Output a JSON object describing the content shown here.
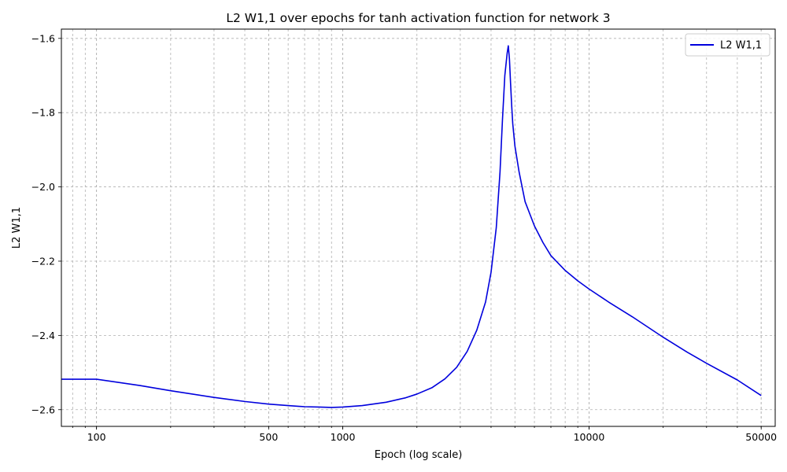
{
  "chart_data": {
    "type": "line",
    "title": "L2 W1,1 over epochs for tanh activation function for network 3",
    "xlabel": "Epoch (log scale)",
    "ylabel": "L2 W1,1",
    "xscale": "log",
    "xlim": [
      72,
      57000
    ],
    "ylim": [
      -2.645,
      -1.575
    ],
    "x_ticks": [
      {
        "value": 100,
        "label": "100"
      },
      {
        "value": 500,
        "label": "500"
      },
      {
        "value": 1000,
        "label": "1000"
      },
      {
        "value": 10000,
        "label": "10000"
      },
      {
        "value": 50000,
        "label": "50000"
      }
    ],
    "y_ticks": [
      {
        "value": -1.6,
        "label": "−1.6"
      },
      {
        "value": -1.8,
        "label": "−1.8"
      },
      {
        "value": -2.0,
        "label": "−2.0"
      },
      {
        "value": -2.2,
        "label": "−2.2"
      },
      {
        "value": -2.4,
        "label": "−2.4"
      },
      {
        "value": -2.6,
        "label": "−2.6"
      }
    ],
    "grid": true,
    "legend_position": "top-right",
    "series": [
      {
        "name": "L2 W1,1",
        "color": "#0000dd",
        "x": [
          72,
          100,
          150,
          200,
          300,
          400,
          500,
          600,
          700,
          800,
          900,
          1000,
          1200,
          1500,
          1800,
          2000,
          2300,
          2600,
          2900,
          3200,
          3500,
          3800,
          4000,
          4200,
          4350,
          4450,
          4550,
          4650,
          4700,
          4750,
          4800,
          4850,
          4900,
          5000,
          5200,
          5500,
          6000,
          6500,
          7000,
          8000,
          9000,
          10000,
          12000,
          15000,
          20000,
          25000,
          30000,
          40000,
          50000
        ],
        "y": [
          -2.518,
          -2.518,
          -2.535,
          -2.549,
          -2.567,
          -2.578,
          -2.585,
          -2.589,
          -2.592,
          -2.593,
          -2.594,
          -2.593,
          -2.589,
          -2.58,
          -2.568,
          -2.558,
          -2.541,
          -2.517,
          -2.486,
          -2.443,
          -2.386,
          -2.31,
          -2.23,
          -2.11,
          -1.96,
          -1.82,
          -1.7,
          -1.64,
          -1.62,
          -1.655,
          -1.72,
          -1.78,
          -1.83,
          -1.89,
          -1.96,
          -2.04,
          -2.105,
          -2.15,
          -2.185,
          -2.225,
          -2.253,
          -2.275,
          -2.31,
          -2.35,
          -2.405,
          -2.445,
          -2.475,
          -2.52,
          -2.562
        ]
      }
    ]
  }
}
